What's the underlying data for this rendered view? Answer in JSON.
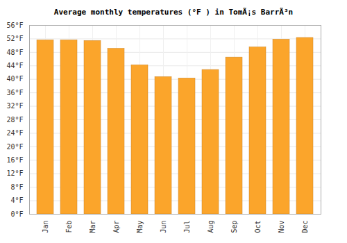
{
  "chart_data": {
    "type": "bar",
    "title": "Average monthly temperatures (°F ) in TomÃ¡s BarrÃ³n",
    "categories": [
      "Jan",
      "Feb",
      "Mar",
      "Apr",
      "May",
      "Jun",
      "Jul",
      "Aug",
      "Sep",
      "Oct",
      "Nov",
      "Dec"
    ],
    "values": [
      51.6,
      51.6,
      51.4,
      49.1,
      44.2,
      40.7,
      40.3,
      42.8,
      46.5,
      49.5,
      51.8,
      52.3
    ],
    "color": "#fba52b",
    "ylim": [
      0,
      56
    ],
    "yticks": [
      {
        "value": 0,
        "label": "0°F"
      },
      {
        "value": 4,
        "label": "4°F"
      },
      {
        "value": 8,
        "label": "8°F"
      },
      {
        "value": 12,
        "label": "12°F"
      },
      {
        "value": 16,
        "label": "16°F"
      },
      {
        "value": 20,
        "label": "20°F"
      },
      {
        "value": 24,
        "label": "24°F"
      },
      {
        "value": 28,
        "label": "28°F"
      },
      {
        "value": 32,
        "label": "32°F"
      },
      {
        "value": 36,
        "label": "36°F"
      },
      {
        "value": 40,
        "label": "40°F"
      },
      {
        "value": 44,
        "label": "44°F"
      },
      {
        "value": 48,
        "label": "48°F"
      },
      {
        "value": 52,
        "label": "52°F"
      },
      {
        "value": 56,
        "label": "56°F"
      }
    ],
    "grid": true
  }
}
